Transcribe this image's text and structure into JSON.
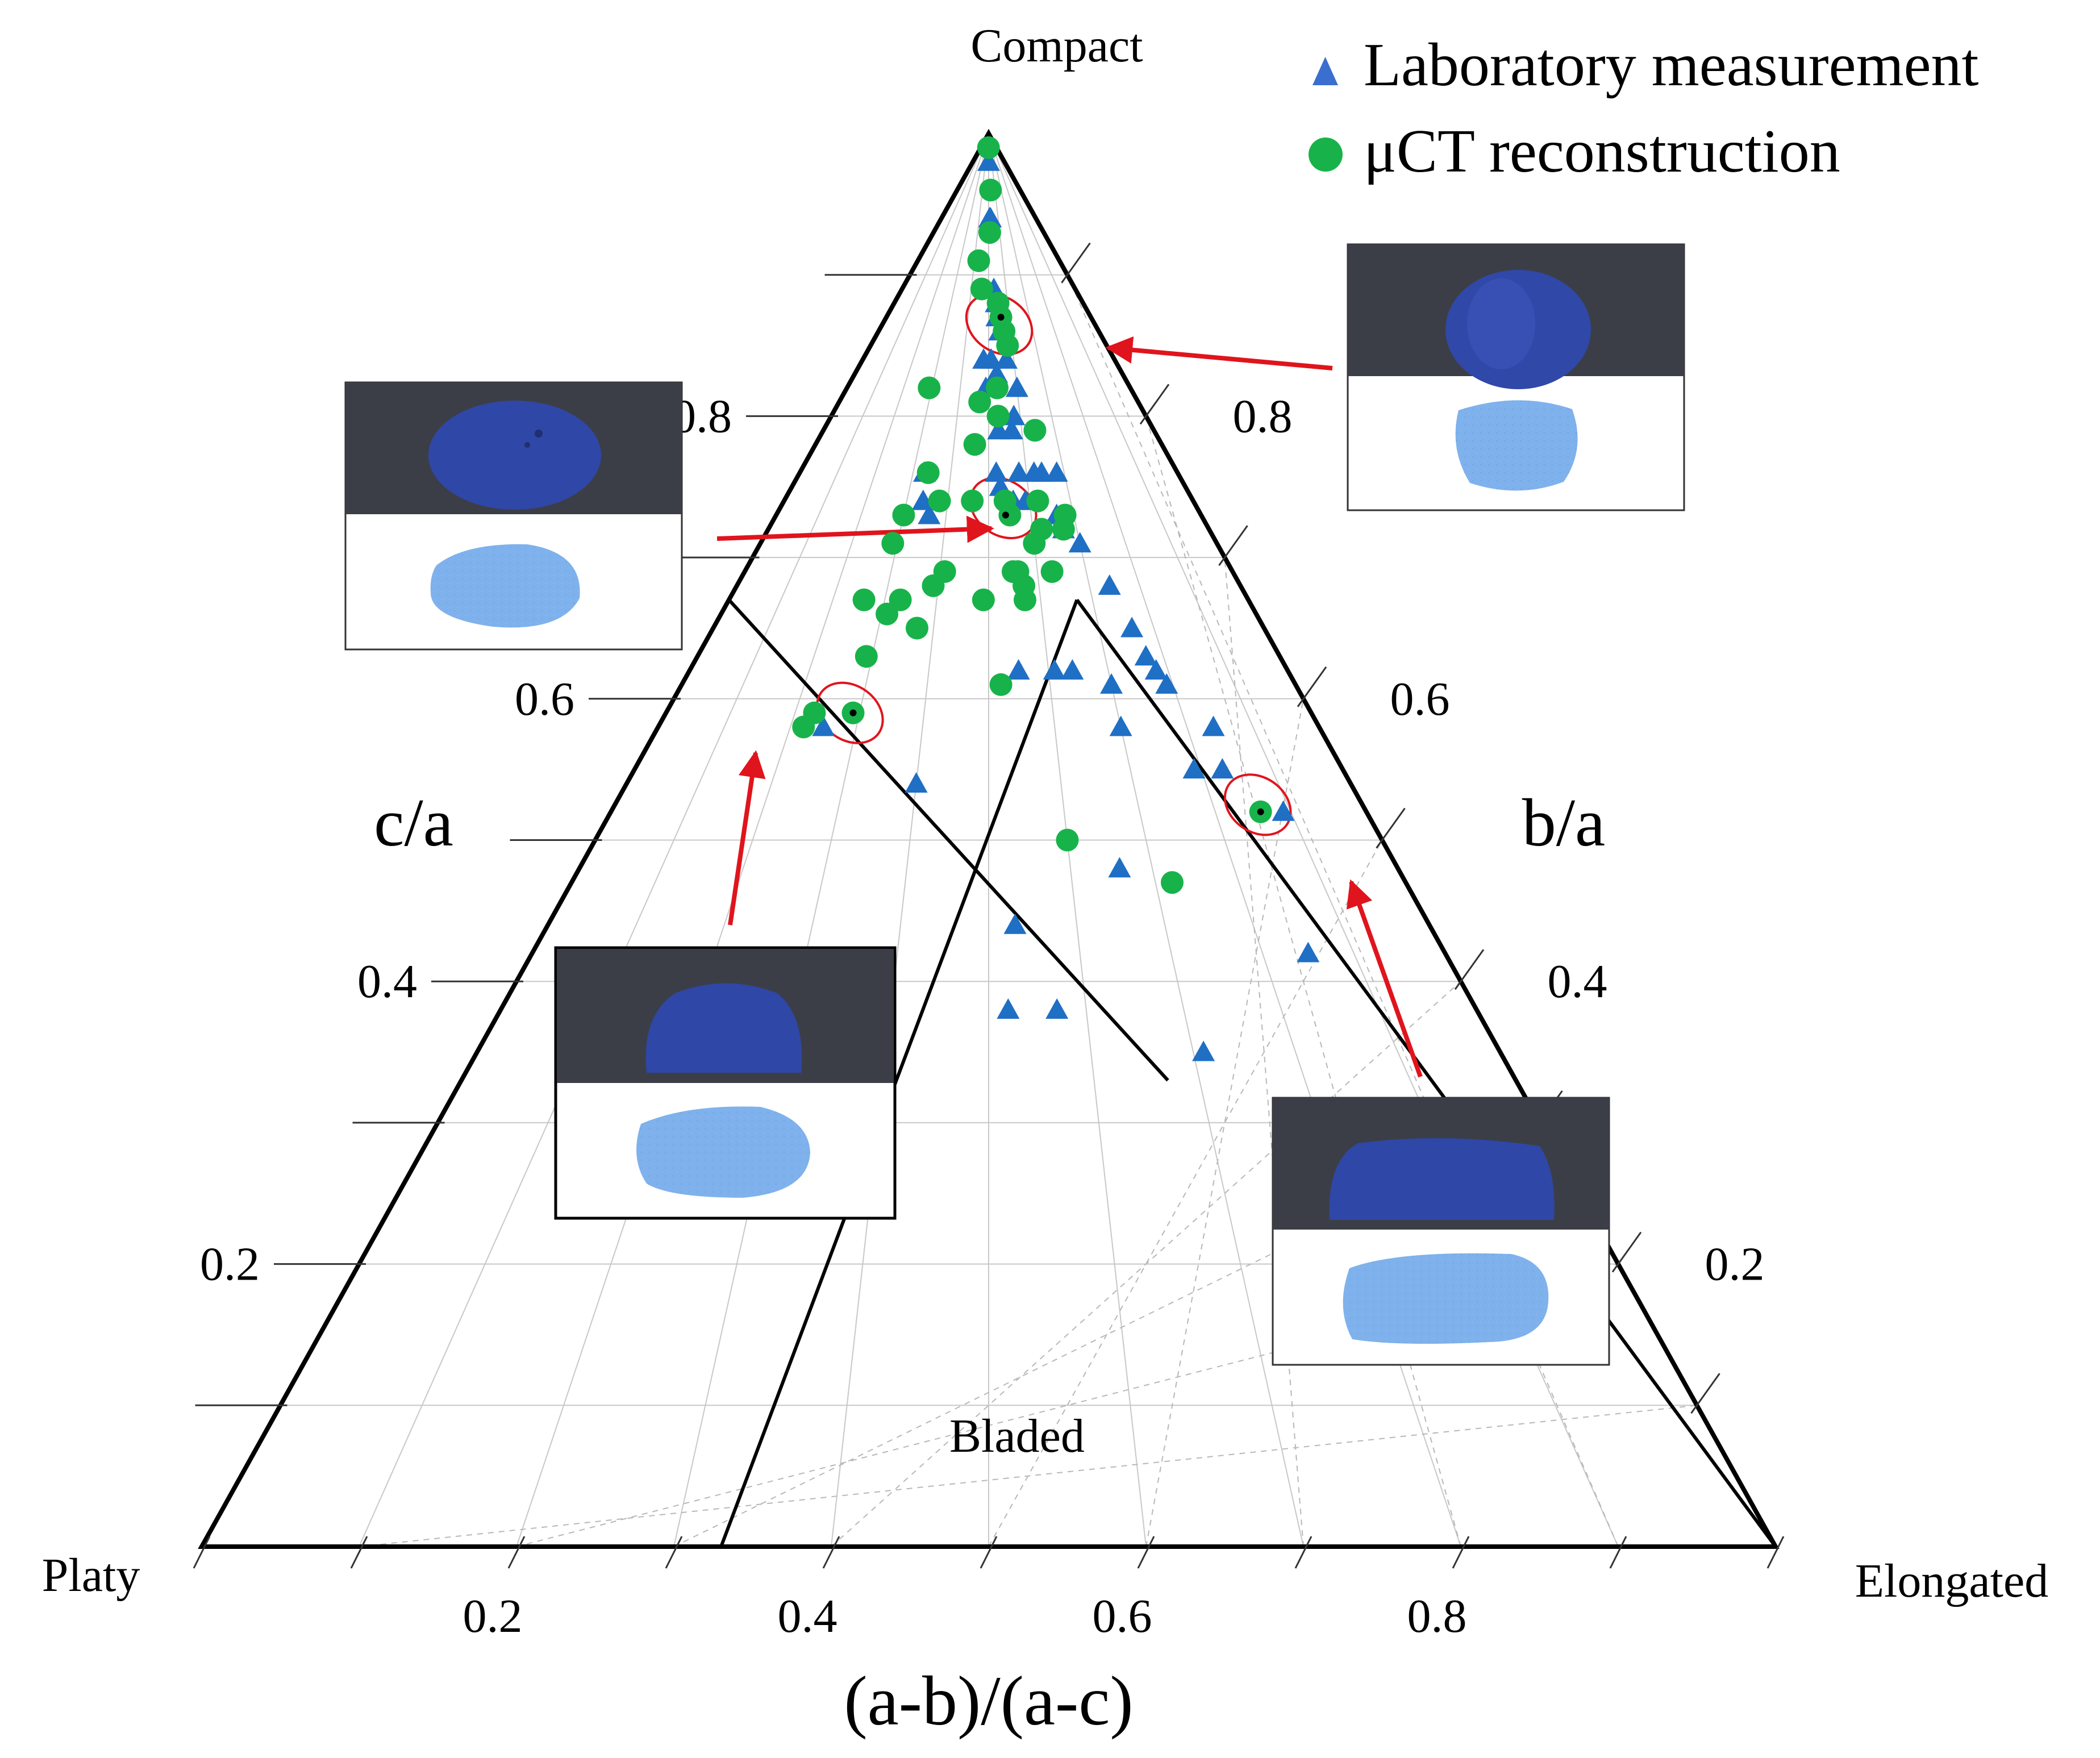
{
  "chart_data": {
    "type": "scatter",
    "subtype": "ternary-sneed-folk-diagram",
    "corners": {
      "top": "Compact",
      "bottom_left": "Platy",
      "bottom_right": "Elongated"
    },
    "xlabel": "(a-b)/(a-c)",
    "left_axis_label": "c/a",
    "right_axis_label": "b/a",
    "region_label": "Bladed",
    "x_ticks": [
      {
        "value": 0.2,
        "label": "0.2"
      },
      {
        "value": 0.4,
        "label": "0.4"
      },
      {
        "value": 0.6,
        "label": "0.6"
      },
      {
        "value": 0.8,
        "label": "0.8"
      }
    ],
    "left_ticks": [
      {
        "value": 0.2,
        "label": "0.2"
      },
      {
        "value": 0.4,
        "label": "0.4"
      },
      {
        "value": 0.6,
        "label": "0.6"
      },
      {
        "value": 0.8,
        "label": "0.8"
      }
    ],
    "right_ticks": [
      {
        "value": 0.2,
        "label": "0.2"
      },
      {
        "value": 0.4,
        "label": "0.4"
      },
      {
        "value": 0.6,
        "label": "0.6"
      },
      {
        "value": 0.8,
        "label": "0.8"
      }
    ],
    "legend_position": "top-right",
    "series": [
      {
        "name": "Laboratory measurement",
        "marker": "triangle",
        "color": "#1f6fc5",
        "points": [
          [
            0.5,
            0.98
          ],
          [
            0.51,
            0.94
          ],
          [
            0.52,
            0.94
          ],
          [
            0.53,
            0.89
          ],
          [
            0.54,
            0.88
          ],
          [
            0.54,
            0.87
          ],
          [
            0.55,
            0.86
          ],
          [
            0.48,
            0.84
          ],
          [
            0.51,
            0.84
          ],
          [
            0.53,
            0.83
          ],
          [
            0.49,
            0.82
          ],
          [
            0.57,
            0.84
          ],
          [
            0.6,
            0.82
          ],
          [
            0.58,
            0.8
          ],
          [
            0.53,
            0.79
          ],
          [
            0.57,
            0.79
          ],
          [
            0.33,
            0.76
          ],
          [
            0.52,
            0.76
          ],
          [
            0.58,
            0.76
          ],
          [
            0.62,
            0.76
          ],
          [
            0.64,
            0.76
          ],
          [
            0.68,
            0.76
          ],
          [
            0.53,
            0.75
          ],
          [
            0.56,
            0.74
          ],
          [
            0.34,
            0.74
          ],
          [
            0.36,
            0.73
          ],
          [
            0.59,
            0.74
          ],
          [
            0.66,
            0.73
          ],
          [
            0.67,
            0.72
          ],
          [
            0.7,
            0.71
          ],
          [
            0.74,
            0.68
          ],
          [
            0.76,
            0.65
          ],
          [
            0.77,
            0.63
          ],
          [
            0.78,
            0.62
          ],
          [
            0.55,
            0.62
          ],
          [
            0.61,
            0.62
          ],
          [
            0.64,
            0.62
          ],
          [
            0.7,
            0.61
          ],
          [
            0.79,
            0.61
          ],
          [
            0.84,
            0.58
          ],
          [
            0.7,
            0.58
          ],
          [
            0.25,
            0.58
          ],
          [
            0.4,
            0.54
          ],
          [
            0.79,
            0.55
          ],
          [
            0.83,
            0.55
          ],
          [
            0.89,
            0.52
          ],
          [
            0.66,
            0.48
          ],
          [
            0.85,
            0.42
          ],
          [
            0.53,
            0.44
          ],
          [
            0.52,
            0.38
          ],
          [
            0.57,
            0.38
          ],
          [
            0.71,
            0.35
          ]
        ]
      },
      {
        "name": "μCT reconstruction",
        "marker": "circle",
        "color": "#17b34a",
        "points": [
          [
            0.49,
            0.99
          ],
          [
            0.53,
            0.96
          ],
          [
            0.51,
            0.93
          ],
          [
            0.43,
            0.91
          ],
          [
            0.46,
            0.89
          ],
          [
            0.55,
            0.88
          ],
          [
            0.56,
            0.87
          ],
          [
            0.57,
            0.86
          ],
          [
            0.58,
            0.85
          ],
          [
            0.29,
            0.82
          ],
          [
            0.47,
            0.81
          ],
          [
            0.53,
            0.82
          ],
          [
            0.53,
            0.8
          ],
          [
            0.64,
            0.79
          ],
          [
            0.46,
            0.78
          ],
          [
            0.34,
            0.76
          ],
          [
            0.46,
            0.74
          ],
          [
            0.38,
            0.74
          ],
          [
            0.54,
            0.74
          ],
          [
            0.55,
            0.73
          ],
          [
            0.62,
            0.74
          ],
          [
            0.68,
            0.73
          ],
          [
            0.67,
            0.72
          ],
          [
            0.3,
            0.73
          ],
          [
            0.62,
            0.72
          ],
          [
            0.6,
            0.71
          ],
          [
            0.29,
            0.71
          ],
          [
            0.63,
            0.69
          ],
          [
            0.41,
            0.69
          ],
          [
            0.39,
            0.68
          ],
          [
            0.55,
            0.69
          ],
          [
            0.56,
            0.69
          ],
          [
            0.57,
            0.68
          ],
          [
            0.49,
            0.67
          ],
          [
            0.26,
            0.67
          ],
          [
            0.33,
            0.67
          ],
          [
            0.57,
            0.67
          ],
          [
            0.31,
            0.66
          ],
          [
            0.37,
            0.65
          ],
          [
            0.29,
            0.63
          ],
          [
            0.52,
            0.61
          ],
          [
            0.29,
            0.59
          ],
          [
            0.23,
            0.59
          ],
          [
            0.22,
            0.58
          ],
          [
            0.6,
            0.5
          ],
          [
            0.72,
            0.47
          ],
          [
            0.86,
            0.52
          ]
        ]
      }
    ],
    "highlighted_samples": [
      {
        "lab": [
          0.54,
          0.86
        ],
        "uct": [
          0.56,
          0.87
        ]
      },
      {
        "lab": [
          0.53,
          0.74
        ],
        "uct": [
          0.54,
          0.73
        ]
      },
      {
        "lab": [
          0.28,
          0.59
        ],
        "uct": [
          0.29,
          0.59
        ]
      },
      {
        "lab": [
          0.86,
          0.53
        ],
        "uct": [
          0.86,
          0.52
        ]
      }
    ],
    "boundaries": [
      {
        "name": "elongated-boundary",
        "from": [
          0.67,
          0.67
        ],
        "to": [
          1.0,
          0.0
        ]
      },
      {
        "name": "bladed-left",
        "from": [
          0.33,
          0.0
        ],
        "to": [
          0.67,
          0.67
        ]
      },
      {
        "name": "platy-boundary",
        "from": [
          0.0,
          0.67
        ],
        "to": [
          0.67,
          0.33
        ]
      }
    ]
  },
  "legend": {
    "lab_label": "Laboratory measurement",
    "uct_label": "μCT reconstruction"
  }
}
